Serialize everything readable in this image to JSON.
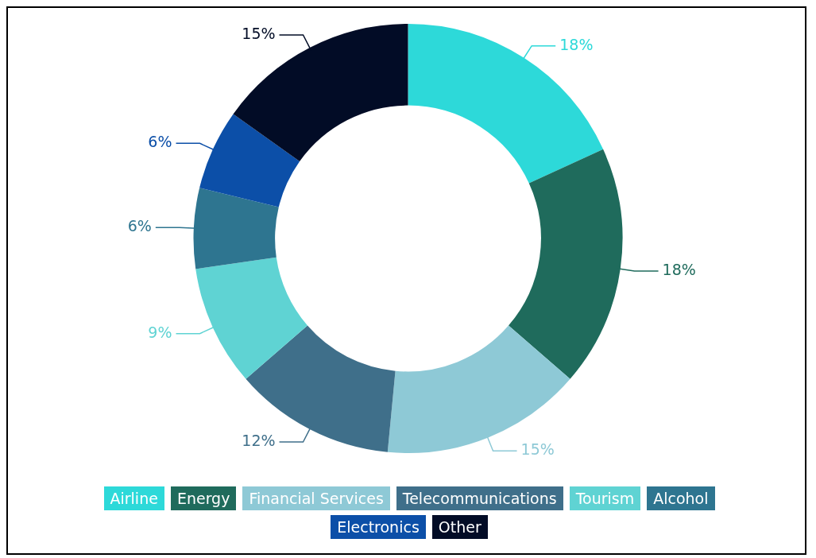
{
  "chart_data": {
    "type": "donut",
    "categories": [
      "Airline",
      "Energy",
      "Financial Services",
      "Telecommunications",
      "Tourism",
      "Alcohol",
      "Electronics",
      "Other"
    ],
    "values": [
      18,
      18,
      15,
      12,
      9,
      6,
      6,
      15
    ],
    "colors": [
      "#2dd9d9",
      "#1f6b5c",
      "#8ec9d6",
      "#3f6f8a",
      "#5fd3d3",
      "#2e7590",
      "#0c4fa8",
      "#020c26"
    ],
    "value_labels": [
      "18%",
      "18%",
      "15%",
      "12%",
      "9%",
      "6%",
      "6%",
      "15%"
    ],
    "legend": "bottom"
  }
}
